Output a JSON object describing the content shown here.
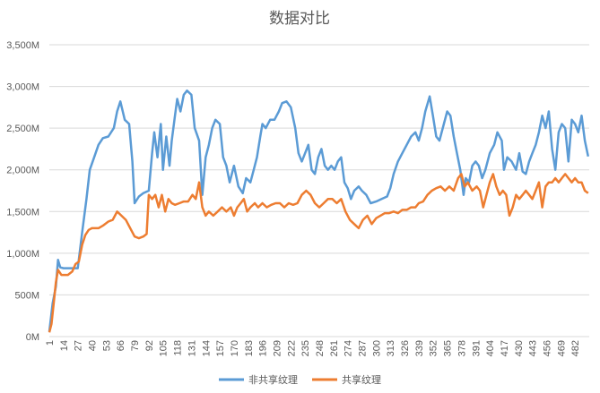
{
  "chart_data": {
    "type": "line",
    "title": "数据对比",
    "xlabel": "",
    "ylabel": "",
    "grid": true,
    "legend_position": "bottom",
    "x_range": [
      1,
      495
    ],
    "ylim": [
      0,
      3500
    ],
    "y_ticks": [
      {
        "value": 0,
        "label": "0M"
      },
      {
        "value": 500,
        "label": "500M"
      },
      {
        "value": 1000,
        "label": "1,000M"
      },
      {
        "value": 1500,
        "label": "1,500M"
      },
      {
        "value": 2000,
        "label": "2,000M"
      },
      {
        "value": 2500,
        "label": "2,500M"
      },
      {
        "value": 3000,
        "label": "3,000M"
      },
      {
        "value": 3500,
        "label": "3,500M"
      }
    ],
    "x_ticks": [
      1,
      14,
      27,
      40,
      53,
      66,
      79,
      92,
      105,
      118,
      131,
      144,
      157,
      170,
      183,
      196,
      209,
      222,
      235,
      248,
      261,
      274,
      287,
      300,
      313,
      326,
      339,
      352,
      365,
      378,
      391,
      404,
      417,
      430,
      443,
      456,
      469,
      482
    ],
    "series": [
      {
        "name": "非共享纹理",
        "color": "#5b9bd5",
        "points": [
          [
            1,
            60
          ],
          [
            4,
            400
          ],
          [
            7,
            600
          ],
          [
            9,
            920
          ],
          [
            11,
            830
          ],
          [
            14,
            820
          ],
          [
            20,
            820
          ],
          [
            27,
            820
          ],
          [
            31,
            1250
          ],
          [
            35,
            1650
          ],
          [
            38,
            2000
          ],
          [
            42,
            2150
          ],
          [
            46,
            2300
          ],
          [
            50,
            2380
          ],
          [
            55,
            2400
          ],
          [
            60,
            2500
          ],
          [
            63,
            2700
          ],
          [
            66,
            2820
          ],
          [
            70,
            2600
          ],
          [
            74,
            2550
          ],
          [
            77,
            2100
          ],
          [
            79,
            1600
          ],
          [
            83,
            1680
          ],
          [
            87,
            1720
          ],
          [
            92,
            1750
          ],
          [
            95,
            2200
          ],
          [
            97,
            2450
          ],
          [
            100,
            2150
          ],
          [
            103,
            2550
          ],
          [
            105,
            2000
          ],
          [
            108,
            2400
          ],
          [
            111,
            2050
          ],
          [
            113,
            2350
          ],
          [
            116,
            2650
          ],
          [
            118,
            2850
          ],
          [
            121,
            2700
          ],
          [
            124,
            2900
          ],
          [
            127,
            2950
          ],
          [
            131,
            2900
          ],
          [
            134,
            2500
          ],
          [
            138,
            2350
          ],
          [
            141,
            1700
          ],
          [
            144,
            2150
          ],
          [
            147,
            2300
          ],
          [
            150,
            2500
          ],
          [
            153,
            2600
          ],
          [
            157,
            2550
          ],
          [
            160,
            2150
          ],
          [
            163,
            2050
          ],
          [
            166,
            1850
          ],
          [
            170,
            2050
          ],
          [
            174,
            1800
          ],
          [
            178,
            1720
          ],
          [
            181,
            1900
          ],
          [
            185,
            1850
          ],
          [
            188,
            2000
          ],
          [
            191,
            2150
          ],
          [
            194,
            2400
          ],
          [
            196,
            2550
          ],
          [
            199,
            2500
          ],
          [
            203,
            2600
          ],
          [
            207,
            2600
          ],
          [
            211,
            2700
          ],
          [
            214,
            2800
          ],
          [
            218,
            2820
          ],
          [
            222,
            2750
          ],
          [
            226,
            2500
          ],
          [
            229,
            2200
          ],
          [
            232,
            2100
          ],
          [
            235,
            2200
          ],
          [
            238,
            2300
          ],
          [
            241,
            2000
          ],
          [
            244,
            1950
          ],
          [
            247,
            2150
          ],
          [
            250,
            2250
          ],
          [
            253,
            2050
          ],
          [
            256,
            2000
          ],
          [
            259,
            2050
          ],
          [
            262,
            2000
          ],
          [
            265,
            2100
          ],
          [
            268,
            2150
          ],
          [
            271,
            1850
          ],
          [
            274,
            1780
          ],
          [
            277,
            1650
          ],
          [
            280,
            1750
          ],
          [
            284,
            1800
          ],
          [
            287,
            1750
          ],
          [
            291,
            1700
          ],
          [
            295,
            1600
          ],
          [
            300,
            1620
          ],
          [
            305,
            1650
          ],
          [
            310,
            1680
          ],
          [
            313,
            1780
          ],
          [
            316,
            1950
          ],
          [
            320,
            2100
          ],
          [
            324,
            2200
          ],
          [
            328,
            2300
          ],
          [
            332,
            2400
          ],
          [
            336,
            2450
          ],
          [
            339,
            2350
          ],
          [
            342,
            2500
          ],
          [
            345,
            2700
          ],
          [
            349,
            2880
          ],
          [
            352,
            2650
          ],
          [
            355,
            2400
          ],
          [
            358,
            2350
          ],
          [
            362,
            2550
          ],
          [
            365,
            2700
          ],
          [
            368,
            2650
          ],
          [
            371,
            2400
          ],
          [
            374,
            2200
          ],
          [
            377,
            2000
          ],
          [
            380,
            1700
          ],
          [
            382,
            1900
          ],
          [
            385,
            1850
          ],
          [
            388,
            2050
          ],
          [
            391,
            2100
          ],
          [
            394,
            2050
          ],
          [
            397,
            1900
          ],
          [
            400,
            2000
          ],
          [
            404,
            2200
          ],
          [
            408,
            2300
          ],
          [
            411,
            2450
          ],
          [
            415,
            2350
          ],
          [
            417,
            2000
          ],
          [
            420,
            2150
          ],
          [
            424,
            2100
          ],
          [
            428,
            2000
          ],
          [
            431,
            2200
          ],
          [
            434,
            1980
          ],
          [
            437,
            1950
          ],
          [
            440,
            2100
          ],
          [
            443,
            2200
          ],
          [
            446,
            2300
          ],
          [
            449,
            2450
          ],
          [
            452,
            2650
          ],
          [
            455,
            2500
          ],
          [
            458,
            2700
          ],
          [
            461,
            2250
          ],
          [
            464,
            2000
          ],
          [
            467,
            2450
          ],
          [
            470,
            2550
          ],
          [
            473,
            2500
          ],
          [
            476,
            2100
          ],
          [
            479,
            2600
          ],
          [
            482,
            2550
          ],
          [
            485,
            2450
          ],
          [
            488,
            2650
          ],
          [
            491,
            2350
          ],
          [
            494,
            2160
          ]
        ]
      },
      {
        "name": "共享纹理",
        "color": "#ed7d31",
        "points": [
          [
            1,
            50
          ],
          [
            3,
            150
          ],
          [
            5,
            400
          ],
          [
            7,
            650
          ],
          [
            9,
            800
          ],
          [
            12,
            740
          ],
          [
            18,
            740
          ],
          [
            22,
            780
          ],
          [
            25,
            870
          ],
          [
            28,
            900
          ],
          [
            31,
            1100
          ],
          [
            34,
            1220
          ],
          [
            37,
            1280
          ],
          [
            40,
            1300
          ],
          [
            46,
            1300
          ],
          [
            50,
            1330
          ],
          [
            55,
            1380
          ],
          [
            59,
            1400
          ],
          [
            63,
            1500
          ],
          [
            67,
            1450
          ],
          [
            71,
            1400
          ],
          [
            75,
            1300
          ],
          [
            79,
            1200
          ],
          [
            83,
            1180
          ],
          [
            87,
            1200
          ],
          [
            90,
            1230
          ],
          [
            92,
            1700
          ],
          [
            95,
            1650
          ],
          [
            98,
            1700
          ],
          [
            101,
            1550
          ],
          [
            104,
            1700
          ],
          [
            107,
            1500
          ],
          [
            110,
            1650
          ],
          [
            113,
            1600
          ],
          [
            116,
            1580
          ],
          [
            120,
            1600
          ],
          [
            124,
            1620
          ],
          [
            128,
            1620
          ],
          [
            132,
            1700
          ],
          [
            135,
            1650
          ],
          [
            138,
            1850
          ],
          [
            141,
            1550
          ],
          [
            144,
            1450
          ],
          [
            147,
            1500
          ],
          [
            151,
            1450
          ],
          [
            155,
            1500
          ],
          [
            159,
            1550
          ],
          [
            163,
            1500
          ],
          [
            167,
            1550
          ],
          [
            170,
            1450
          ],
          [
            173,
            1550
          ],
          [
            176,
            1600
          ],
          [
            179,
            1650
          ],
          [
            182,
            1500
          ],
          [
            185,
            1550
          ],
          [
            189,
            1600
          ],
          [
            192,
            1550
          ],
          [
            196,
            1600
          ],
          [
            200,
            1550
          ],
          [
            204,
            1580
          ],
          [
            208,
            1600
          ],
          [
            212,
            1600
          ],
          [
            216,
            1550
          ],
          [
            220,
            1600
          ],
          [
            224,
            1580
          ],
          [
            228,
            1600
          ],
          [
            232,
            1700
          ],
          [
            236,
            1750
          ],
          [
            240,
            1700
          ],
          [
            244,
            1600
          ],
          [
            248,
            1550
          ],
          [
            252,
            1600
          ],
          [
            256,
            1650
          ],
          [
            260,
            1650
          ],
          [
            264,
            1600
          ],
          [
            268,
            1650
          ],
          [
            272,
            1500
          ],
          [
            276,
            1400
          ],
          [
            280,
            1350
          ],
          [
            284,
            1300
          ],
          [
            288,
            1400
          ],
          [
            292,
            1450
          ],
          [
            296,
            1350
          ],
          [
            300,
            1420
          ],
          [
            304,
            1450
          ],
          [
            308,
            1480
          ],
          [
            312,
            1480
          ],
          [
            316,
            1500
          ],
          [
            320,
            1480
          ],
          [
            324,
            1520
          ],
          [
            328,
            1520
          ],
          [
            332,
            1550
          ],
          [
            336,
            1550
          ],
          [
            339,
            1600
          ],
          [
            343,
            1620
          ],
          [
            347,
            1700
          ],
          [
            351,
            1750
          ],
          [
            355,
            1780
          ],
          [
            359,
            1800
          ],
          [
            363,
            1750
          ],
          [
            367,
            1800
          ],
          [
            371,
            1750
          ],
          [
            375,
            1900
          ],
          [
            378,
            1950
          ],
          [
            381,
            1800
          ],
          [
            384,
            1850
          ],
          [
            388,
            1750
          ],
          [
            392,
            1800
          ],
          [
            395,
            1750
          ],
          [
            398,
            1550
          ],
          [
            401,
            1700
          ],
          [
            404,
            1850
          ],
          [
            407,
            1950
          ],
          [
            410,
            1800
          ],
          [
            413,
            1700
          ],
          [
            416,
            1750
          ],
          [
            419,
            1700
          ],
          [
            422,
            1450
          ],
          [
            425,
            1550
          ],
          [
            428,
            1700
          ],
          [
            431,
            1650
          ],
          [
            434,
            1700
          ],
          [
            437,
            1750
          ],
          [
            440,
            1700
          ],
          [
            443,
            1650
          ],
          [
            446,
            1750
          ],
          [
            449,
            1850
          ],
          [
            452,
            1550
          ],
          [
            455,
            1800
          ],
          [
            458,
            1850
          ],
          [
            461,
            1850
          ],
          [
            464,
            1900
          ],
          [
            467,
            1850
          ],
          [
            470,
            1900
          ],
          [
            473,
            1950
          ],
          [
            476,
            1900
          ],
          [
            479,
            1850
          ],
          [
            482,
            1900
          ],
          [
            485,
            1850
          ],
          [
            488,
            1850
          ],
          [
            491,
            1750
          ],
          [
            494,
            1720
          ]
        ]
      }
    ]
  }
}
